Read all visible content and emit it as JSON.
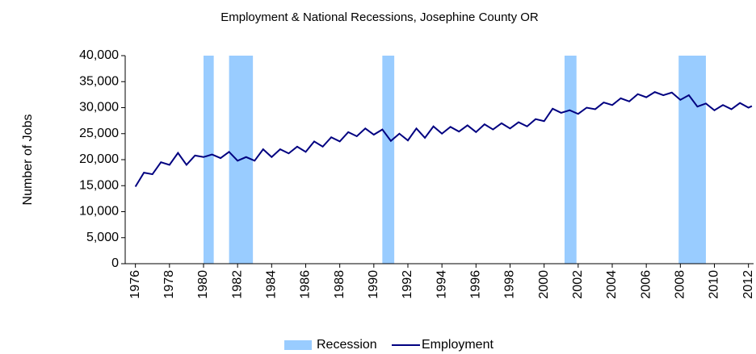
{
  "chart_data": {
    "type": "line",
    "title": "Employment & National Recessions, Josephine County OR",
    "y_label": "Number of Jobs",
    "xlim": [
      1975.4,
      2012.3
    ],
    "xticks": [
      1976,
      1978,
      1980,
      1982,
      1984,
      1986,
      1988,
      1990,
      1992,
      1994,
      1996,
      1998,
      2000,
      2002,
      2004,
      2006,
      2008,
      2010,
      2012
    ],
    "ylim": [
      0,
      40000
    ],
    "yticks": [
      0,
      {
        "value": 5000,
        "label": "5,000"
      },
      {
        "value": 10000,
        "label": "10,000"
      },
      {
        "value": 15000,
        "label": "15,000"
      },
      {
        "value": 20000,
        "label": "20,000"
      },
      {
        "value": 25000,
        "label": "25,000"
      },
      {
        "value": 30000,
        "label": "30,000"
      },
      {
        "value": 35000,
        "label": "35,000"
      },
      {
        "value": 40000,
        "label": "40,000"
      }
    ],
    "series": [
      {
        "name": "Recession",
        "color": "#99ccff",
        "ranges": [
          [
            1980.0,
            1980.6
          ],
          [
            1981.5,
            1982.9
          ],
          [
            1990.5,
            1991.2
          ],
          [
            2001.2,
            2001.9
          ],
          [
            2007.9,
            2009.5
          ]
        ]
      },
      {
        "name": "Employment",
        "color": "#000080",
        "x": [
          1976,
          1976.5,
          1977,
          1977.5,
          1978,
          1978.5,
          1979,
          1979.5,
          1980,
          1980.5,
          1981,
          1981.5,
          1982,
          1982.5,
          1983,
          1983.5,
          1984,
          1984.5,
          1985,
          1985.5,
          1986,
          1986.5,
          1987,
          1987.5,
          1988,
          1988.5,
          1989,
          1989.5,
          1990,
          1990.5,
          1991,
          1991.5,
          1992,
          1992.5,
          1993,
          1993.5,
          1994,
          1994.5,
          1995,
          1995.5,
          1996,
          1996.5,
          1997,
          1997.5,
          1998,
          1998.5,
          1999,
          1999.5,
          2000,
          2000.5,
          2001,
          2001.5,
          2002,
          2002.5,
          2003,
          2003.5,
          2004,
          2004.5,
          2005,
          2005.5,
          2006,
          2006.5,
          2007,
          2007.5,
          2008,
          2008.5,
          2009,
          2009.5,
          2010,
          2010.5,
          2011,
          2011.5,
          2012,
          2012.2
        ],
        "values": [
          14800,
          17500,
          17200,
          19500,
          19000,
          21300,
          19000,
          20800,
          20500,
          21000,
          20300,
          21500,
          19800,
          20500,
          19800,
          22000,
          20500,
          22000,
          21200,
          22500,
          21500,
          23500,
          22500,
          24300,
          23500,
          25300,
          24500,
          26000,
          24800,
          25800,
          23600,
          25000,
          23700,
          26000,
          24200,
          26400,
          25000,
          26300,
          25400,
          26600,
          25300,
          26800,
          25800,
          27000,
          26000,
          27200,
          26400,
          27800,
          27400,
          29800,
          29000,
          29500,
          28800,
          30000,
          29700,
          31000,
          30500,
          31800,
          31200,
          32600,
          32000,
          33000,
          32400,
          32900,
          31500,
          32400,
          30200,
          30800,
          29500,
          30500,
          29700,
          30900,
          30000,
          30300
        ]
      }
    ],
    "legend": "bottom"
  }
}
